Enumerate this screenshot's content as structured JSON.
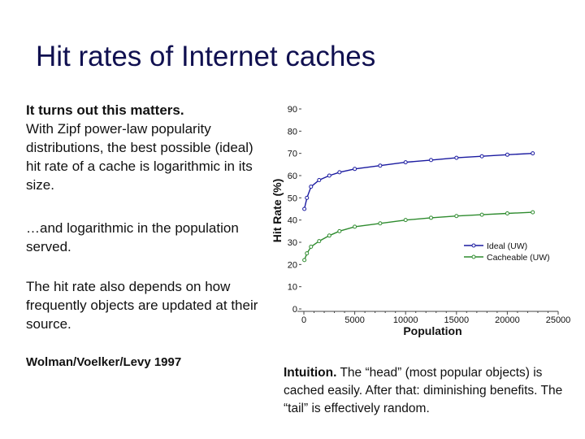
{
  "slide": {
    "title": "Hit rates of Internet caches",
    "para1_lead": "It turns out this matters.",
    "para1_rest": "With Zipf power-law popularity distributions, the best possible (ideal) hit rate of a cache is logarithmic in its size.",
    "para2": "…and logarithmic in the population served.",
    "para3": "The hit rate also depends on how frequently objects are updated at their source.",
    "citation": "Wolman/Voelker/Levy 1997",
    "intuition_lead": "Intuition.",
    "intuition_rest": " The “head” (most popular objects) is cached easily.  After that: diminishing benefits.  The “tail” is effectively random."
  },
  "colors": {
    "title": "#101050",
    "ideal": "#1a1aa0",
    "cacheable": "#2e8b2e"
  },
  "chart_data": {
    "type": "line",
    "title": "",
    "xlabel": "Population",
    "ylabel": "Hit Rate (%)",
    "xlim": [
      0,
      25000
    ],
    "ylim": [
      0,
      90
    ],
    "x_ticks": [
      0,
      5000,
      10000,
      15000,
      20000,
      25000
    ],
    "y_ticks": [
      0,
      10,
      20,
      30,
      40,
      50,
      60,
      70,
      80,
      90
    ],
    "legend_position": "bottom-right",
    "grid": false,
    "series": [
      {
        "name": "Ideal (UW)",
        "color": "#1a1aa0",
        "x": [
          50,
          300,
          700,
          1500,
          2500,
          3500,
          5000,
          7500,
          10000,
          12500,
          15000,
          17500,
          20000,
          22500
        ],
        "y": [
          45,
          50,
          55,
          58,
          60,
          61.5,
          63,
          64.5,
          66,
          67,
          68,
          68.7,
          69.4,
          70
        ]
      },
      {
        "name": "Cacheable (UW)",
        "color": "#2e8b2e",
        "x": [
          50,
          300,
          700,
          1500,
          2500,
          3500,
          5000,
          7500,
          10000,
          12500,
          15000,
          17500,
          20000,
          22500
        ],
        "y": [
          22,
          25,
          28,
          30.5,
          33,
          35,
          37,
          38.5,
          40,
          41,
          41.8,
          42.4,
          43,
          43.5
        ]
      }
    ]
  }
}
